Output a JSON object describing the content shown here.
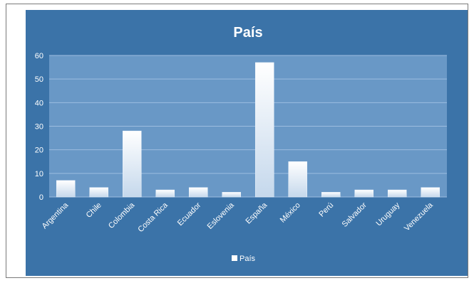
{
  "colors": {
    "background": "#3b73a8",
    "plot_area": "#6998c6",
    "gridline": "#9dbde0",
    "bar_top": "#ffffff",
    "bar_bottom": "#c5d8ec",
    "text": "#ffffff"
  },
  "chart_data": {
    "type": "bar",
    "title": "País",
    "categories": [
      "Argentina",
      "Chile",
      "Colombia",
      "Costa Rica",
      "Ecuador",
      "Eslovenia",
      "España",
      "México",
      "Perú",
      "Salvador",
      "Uruguay",
      "Venezuela"
    ],
    "series": [
      {
        "name": "País",
        "values": [
          7,
          4,
          28,
          3,
          4,
          2,
          57,
          15,
          2,
          3,
          3,
          4
        ]
      }
    ],
    "ylim": [
      0,
      60
    ],
    "yticks": [
      0,
      10,
      20,
      30,
      40,
      50,
      60
    ],
    "grid": true,
    "legend": "bottom",
    "xlabel": "",
    "ylabel": ""
  }
}
